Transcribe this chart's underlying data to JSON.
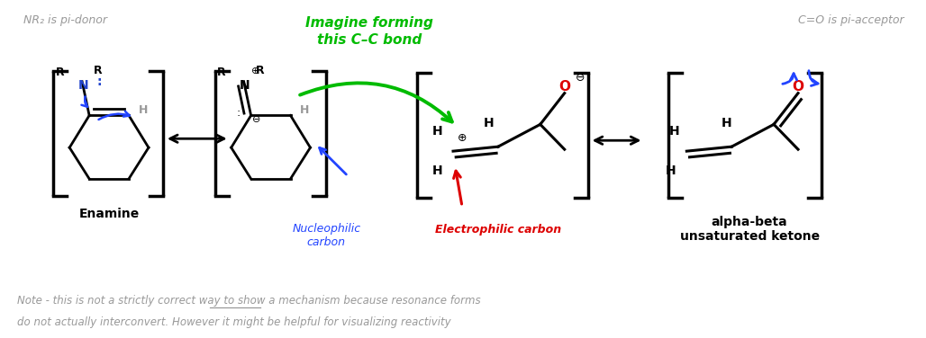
{
  "bg_color": "#ffffff",
  "title_left": "NR₂ is pi-donor",
  "title_right": "C=O is pi-acceptor",
  "label_enamine": "Enamine",
  "label_nucleophilic": "Nucleophilic\ncarbon",
  "label_electrophilic": "Electrophilic carbon",
  "label_alpha_beta": "alpha-beta\nunsaturated ketone",
  "label_imagine": "Imagine forming\nthis C–C bond",
  "note_line1": "Note - this is not a strictly correct way to show a mechanism because resonance forms",
  "note_line2": "do not actually interconvert. However it might be helpful for visualizing reactivity",
  "color_green": "#00bb00",
  "color_blue": "#2244ff",
  "color_red": "#dd0000",
  "color_gray": "#999999",
  "color_black": "#000000",
  "oplus": "⊕",
  "ominus": "⊖"
}
